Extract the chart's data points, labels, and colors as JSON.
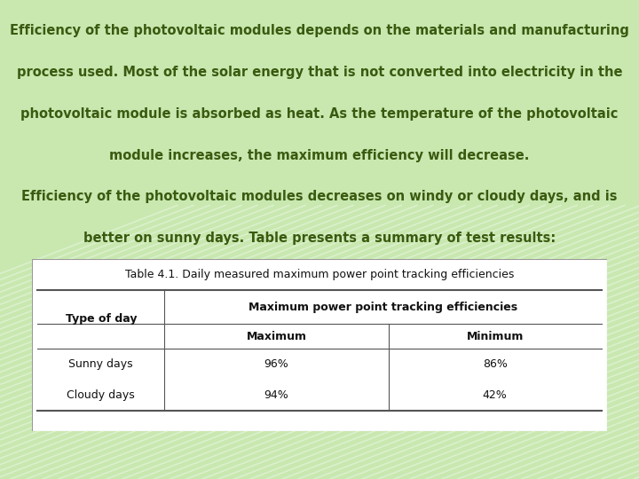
{
  "bg_color": "#c8e8b0",
  "stripe_color": "#d8f0c0",
  "text_color": "#3a5a10",
  "paragraph_lines": [
    "Efficiency of the photovoltaic modules depends on the materials and manufacturing",
    "process used. Most of the solar energy that is not converted into electricity in the",
    "photovoltaic module is absorbed as heat. As the temperature of the photovoltaic",
    "module increases, the maximum efficiency will decrease.",
    "Efficiency of the photovoltaic modules decreases on windy or cloudy days, and is",
    "better on sunny days. Table presents a summary of test results:"
  ],
  "table_title": "Table 4.1. Daily measured maximum power point tracking efficiencies",
  "col_header1": "Type of day",
  "col_header2": "Maximum power point tracking efficiencies",
  "col_sub1": "Maximum",
  "col_sub2": "Minimum",
  "row1": [
    "Sunny days",
    "96%",
    "86%"
  ],
  "row2": [
    "Cloudy days",
    "94%",
    "42%"
  ],
  "font_size_para": 10.5,
  "font_size_table": 9.0,
  "font_family": "DejaVu Sans"
}
